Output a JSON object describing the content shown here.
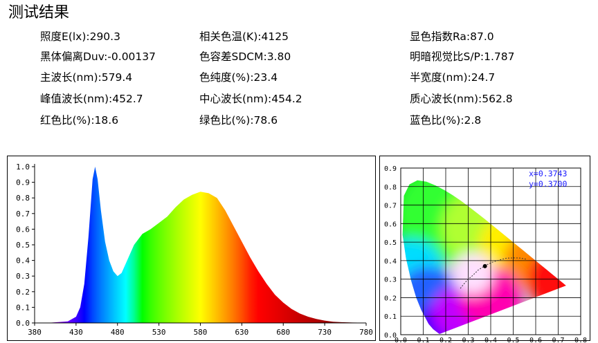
{
  "title": "测试结果",
  "params": [
    "照度E(lx):290.3",
    "相关色温(K):4125",
    "显色指数Ra:87.0",
    "黑体偏离Duv:-0.00137",
    "色容差SDCM:3.80",
    "明暗视觉比S/P:1.787",
    "主波长(nm):579.4",
    "色纯度(%):23.4",
    "半宽度(nm):24.7",
    "峰值波长(nm):452.7",
    "中心波长(nm):454.2",
    "质心波长(nm):562.8",
    "红色比(%):18.6",
    "绿色比(%):78.6",
    "蓝色比(%):2.8"
  ],
  "chart_data": [
    {
      "type": "area",
      "title": "",
      "xlabel": "",
      "ylabel": "",
      "xlim": [
        380,
        780
      ],
      "ylim": [
        0,
        1.0
      ],
      "xticks": [
        "380",
        "430",
        "480",
        "530",
        "580",
        "630",
        "680",
        "730",
        "780"
      ],
      "yticks": [
        "0.0",
        "0.1",
        "0.2",
        "0.3",
        "0.4",
        "0.5",
        "0.6",
        "0.7",
        "0.8",
        "0.9",
        "1.0"
      ],
      "grid": false,
      "x": [
        380,
        400,
        420,
        430,
        435,
        440,
        445,
        450,
        453,
        456,
        460,
        465,
        470,
        475,
        480,
        485,
        490,
        500,
        510,
        520,
        530,
        540,
        550,
        560,
        570,
        580,
        590,
        600,
        610,
        620,
        630,
        640,
        650,
        660,
        670,
        680,
        690,
        700,
        710,
        720,
        730,
        740,
        750,
        760,
        770,
        780
      ],
      "y": [
        0.0,
        0.002,
        0.01,
        0.04,
        0.1,
        0.25,
        0.55,
        0.92,
        1.0,
        0.92,
        0.72,
        0.52,
        0.4,
        0.33,
        0.3,
        0.32,
        0.38,
        0.5,
        0.57,
        0.6,
        0.64,
        0.68,
        0.74,
        0.79,
        0.82,
        0.84,
        0.83,
        0.8,
        0.72,
        0.62,
        0.52,
        0.42,
        0.33,
        0.25,
        0.18,
        0.13,
        0.09,
        0.06,
        0.04,
        0.025,
        0.015,
        0.008,
        0.005,
        0.003,
        0.002,
        0.001
      ]
    },
    {
      "type": "scatter",
      "title": "",
      "xlim": [
        0,
        0.8
      ],
      "ylim": [
        0,
        0.9
      ],
      "xticks": [
        "0.0",
        "0.1",
        "0.2",
        "0.3",
        "0.4",
        "0.5",
        "0.6",
        "0.7",
        "0.8"
      ],
      "yticks": [
        "0.0",
        "0.1",
        "0.2",
        "0.3",
        "0.4",
        "0.5",
        "0.6",
        "0.7",
        "0.8",
        "0.9"
      ],
      "grid": true,
      "point": {
        "x": 0.3743,
        "y": 0.37
      },
      "labels": [
        "x=0.3743",
        "y=0.3700"
      ],
      "label_color": "#1a1aff",
      "locus": [
        [
          0.1741,
          0.005
        ],
        [
          0.1738,
          0.0049
        ],
        [
          0.1721,
          0.0048
        ],
        [
          0.1689,
          0.0069
        ],
        [
          0.144,
          0.0297
        ],
        [
          0.1241,
          0.0578
        ],
        [
          0.0913,
          0.1327
        ],
        [
          0.0687,
          0.2007
        ],
        [
          0.0454,
          0.295
        ],
        [
          0.0235,
          0.4127
        ],
        [
          0.0082,
          0.5384
        ],
        [
          0.0139,
          0.7502
        ],
        [
          0.0389,
          0.812
        ],
        [
          0.0743,
          0.8338
        ],
        [
          0.1142,
          0.8262
        ],
        [
          0.1547,
          0.8059
        ],
        [
          0.1929,
          0.7816
        ],
        [
          0.2296,
          0.7543
        ],
        [
          0.2658,
          0.7243
        ],
        [
          0.3016,
          0.6923
        ],
        [
          0.3373,
          0.6589
        ],
        [
          0.3731,
          0.6245
        ],
        [
          0.4087,
          0.5896
        ],
        [
          0.4441,
          0.5547
        ],
        [
          0.4788,
          0.5202
        ],
        [
          0.5125,
          0.4866
        ],
        [
          0.5448,
          0.4544
        ],
        [
          0.5752,
          0.4242
        ],
        [
          0.6029,
          0.3965
        ],
        [
          0.627,
          0.3725
        ],
        [
          0.6482,
          0.3514
        ],
        [
          0.6658,
          0.334
        ],
        [
          0.6801,
          0.3197
        ],
        [
          0.6915,
          0.3083
        ],
        [
          0.7006,
          0.2993
        ],
        [
          0.7079,
          0.292
        ],
        [
          0.714,
          0.2859
        ],
        [
          0.719,
          0.2809
        ],
        [
          0.7347,
          0.2653
        ]
      ],
      "planckian": [
        [
          0.265,
          0.25
        ],
        [
          0.285,
          0.28
        ],
        [
          0.3,
          0.3
        ],
        [
          0.32,
          0.32
        ],
        [
          0.345,
          0.35
        ],
        [
          0.38,
          0.376
        ],
        [
          0.41,
          0.393
        ],
        [
          0.44,
          0.404
        ],
        [
          0.47,
          0.413
        ],
        [
          0.5,
          0.415
        ],
        [
          0.53,
          0.414
        ],
        [
          0.56,
          0.407
        ]
      ]
    }
  ]
}
